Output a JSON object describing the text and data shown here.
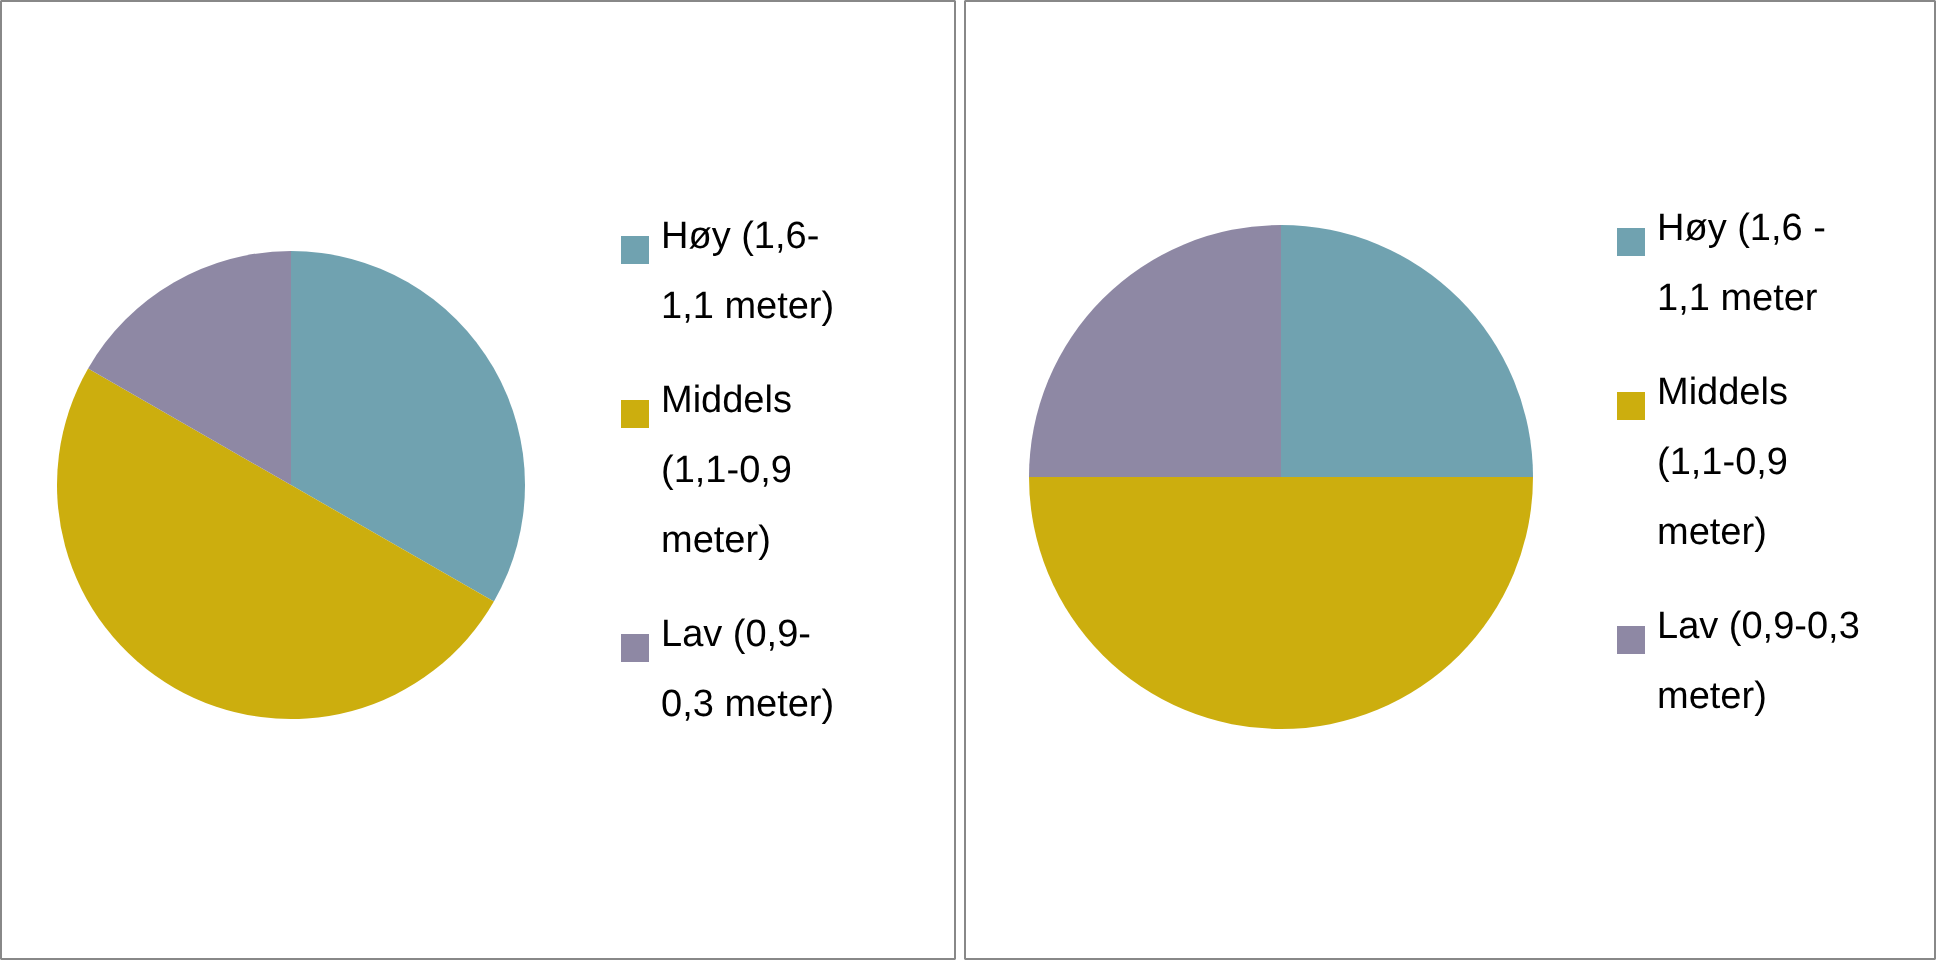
{
  "chart_data": [
    {
      "type": "pie",
      "categories": [
        "Høy (1,6-1,1 meter)",
        "Middels (1,1-0,9 meter)",
        "Lav (0,9-0,3 meter)"
      ],
      "values": [
        33.3,
        50,
        16.7
      ],
      "colors": [
        "#70a2b0",
        "#ccae0e",
        "#8e88a4"
      ],
      "legend": "right"
    },
    {
      "type": "pie",
      "categories": [
        "Høy (1,6 -1,1 meter",
        "Middels (1,1-0,9 meter)",
        "Lav (0,9-0,3 meter)"
      ],
      "values": [
        25,
        50,
        25
      ],
      "colors": [
        "#70a2b0",
        "#ccae0e",
        "#8e88a4"
      ],
      "legend": "right"
    }
  ]
}
